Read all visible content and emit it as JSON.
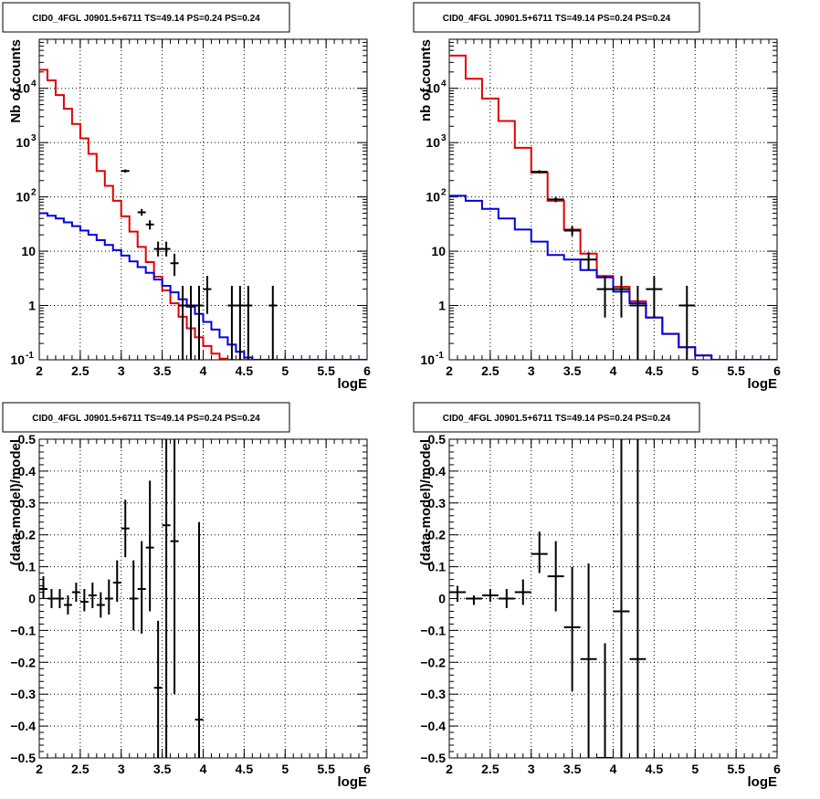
{
  "chart_data": [
    {
      "id": "counts_left",
      "type": "line",
      "title": "CID0_4FGL J0901.5+6711 TS=49.14 PS=0.24 PS=0.24",
      "xlabel": "logE",
      "ylabel": "Nb of counts",
      "xlim": [
        2,
        6
      ],
      "ylim": [
        0.1,
        80000
      ],
      "yscale": "log",
      "grid": true,
      "x_ticks": [
        "2",
        "2.5",
        "3",
        "3.5",
        "4",
        "4.5",
        "5",
        "5.5",
        "6"
      ],
      "y_ticks": [
        {
          "value": 0.1,
          "label": "10",
          "sup": "-1"
        },
        {
          "value": 1,
          "label": "1"
        },
        {
          "value": 10,
          "label": "10"
        },
        {
          "value": 100,
          "label": "10",
          "sup": "2"
        },
        {
          "value": 1000,
          "label": "10",
          "sup": "3"
        },
        {
          "value": 10000,
          "label": "10",
          "sup": "4"
        }
      ],
      "bin_edges": [
        2.0,
        2.1,
        2.2,
        2.3,
        2.4,
        2.5,
        2.6,
        2.7,
        2.8,
        2.9,
        3.0,
        3.1,
        3.2,
        3.3,
        3.4,
        3.5,
        3.6,
        3.7,
        3.8,
        3.9,
        4.0,
        4.1,
        4.2,
        4.3,
        4.4,
        4.5,
        4.6,
        4.7,
        4.8,
        4.9,
        5.0,
        5.1,
        5.2,
        5.3,
        5.4,
        5.5,
        5.6,
        5.7,
        5.8,
        5.9,
        6.0
      ],
      "series": [
        {
          "color": "#e00000",
          "style": "hist",
          "values": [
            22000,
            14000,
            7500,
            4200,
            2200,
            1200,
            620,
            300,
            160,
            85,
            44,
            23,
            12,
            6.3,
            3.4,
            1.9,
            1.1,
            0.62,
            0.38,
            0.26,
            0.18,
            0.13,
            0.105,
            0.1,
            0.1,
            0.1,
            0.1,
            0.1,
            0.1,
            0.1,
            0.1,
            0.1,
            0.1,
            0.1,
            0.1,
            0.1,
            0.1,
            0.1,
            0.1,
            0.1
          ]
        },
        {
          "color": "#0000dd",
          "style": "hist",
          "values": [
            50,
            45,
            40,
            34,
            29,
            24,
            20,
            16,
            13,
            10.5,
            8.3,
            6.5,
            5.1,
            4.0,
            3.0,
            2.3,
            1.75,
            1.3,
            0.95,
            0.7,
            0.5,
            0.36,
            0.26,
            0.19,
            0.14,
            0.11,
            0.1,
            0.1,
            0.1,
            0.1,
            0.1,
            0.1,
            0.1,
            0.1,
            0.1,
            0.1,
            0.1,
            0.1,
            0.1,
            0.1
          ]
        },
        {
          "color": "#000000",
          "style": "points",
          "points": [
            {
              "x": 3.05,
              "y": 300,
              "ylo": 280,
              "yhi": 320,
              "xerr": 0.05
            },
            {
              "x": 3.25,
              "y": 52,
              "ylo": 45,
              "yhi": 60,
              "xerr": 0.05
            },
            {
              "x": 3.35,
              "y": 31,
              "ylo": 25,
              "yhi": 37,
              "xerr": 0.05
            },
            {
              "x": 3.45,
              "y": 11,
              "ylo": 8,
              "yhi": 15,
              "xerr": 0.05
            },
            {
              "x": 3.55,
              "y": 11,
              "ylo": 8,
              "yhi": 15,
              "xerr": 0.05
            },
            {
              "x": 3.65,
              "y": 6,
              "ylo": 3.5,
              "yhi": 9,
              "xerr": 0.05
            },
            {
              "x": 3.75,
              "y": 1,
              "ylo": 0.1,
              "yhi": 2.3,
              "xerr": 0.05
            },
            {
              "x": 3.85,
              "y": 1,
              "ylo": 0.1,
              "yhi": 2.3,
              "xerr": 0.05
            },
            {
              "x": 3.95,
              "y": 1,
              "ylo": 0.1,
              "yhi": 2.3,
              "xerr": 0.05
            },
            {
              "x": 4.05,
              "y": 2,
              "ylo": 0.7,
              "yhi": 3.5,
              "xerr": 0.05
            },
            {
              "x": 4.35,
              "y": 1,
              "ylo": 0.1,
              "yhi": 2.3,
              "xerr": 0.05
            },
            {
              "x": 4.45,
              "y": 1,
              "ylo": 0.1,
              "yhi": 2.3,
              "xerr": 0.05
            },
            {
              "x": 4.55,
              "y": 1,
              "ylo": 0.1,
              "yhi": 2.3,
              "xerr": 0.05
            },
            {
              "x": 4.85,
              "y": 1,
              "ylo": 0.1,
              "yhi": 2.3,
              "xerr": 0.05
            }
          ]
        }
      ]
    },
    {
      "id": "counts_right",
      "type": "line",
      "title": "CID0_4FGL J0901.5+6711 TS=49.14 PS=0.24 PS=0.24",
      "xlabel": "logE",
      "ylabel": "nb of counts",
      "xlim": [
        2,
        6
      ],
      "ylim": [
        0.1,
        80000
      ],
      "yscale": "log",
      "grid": true,
      "x_ticks": [
        "2",
        "2.5",
        "3",
        "3.5",
        "4",
        "4.5",
        "5",
        "5.5",
        "6"
      ],
      "y_ticks": [
        {
          "value": 0.1,
          "label": "10",
          "sup": "-1"
        },
        {
          "value": 1,
          "label": "1"
        },
        {
          "value": 10,
          "label": "10"
        },
        {
          "value": 100,
          "label": "10",
          "sup": "2"
        },
        {
          "value": 1000,
          "label": "10",
          "sup": "3"
        },
        {
          "value": 10000,
          "label": "10",
          "sup": "4"
        }
      ],
      "bin_edges": [
        2.0,
        2.2,
        2.4,
        2.6,
        2.8,
        3.0,
        3.2,
        3.4,
        3.6,
        3.8,
        4.0,
        4.2,
        4.4,
        4.6,
        4.8,
        5.0,
        5.2,
        5.4,
        5.6,
        5.8,
        6.0
      ],
      "series": [
        {
          "color": "#e00000",
          "style": "hist",
          "values": [
            40000,
            15000,
            6500,
            2500,
            800,
            280,
            85,
            25,
            9,
            3.5,
            2.2,
            1.2,
            0.6,
            0.3,
            0.17,
            0.12,
            0.1,
            0.1,
            0.1,
            0.1
          ]
        },
        {
          "color": "#0000dd",
          "style": "hist",
          "values": [
            105,
            85,
            60,
            40,
            25,
            15,
            8.5,
            7,
            4.5,
            3.3,
            1.8,
            1.1,
            0.6,
            0.3,
            0.17,
            0.12,
            0.1,
            0.1,
            0.1,
            0.1
          ]
        },
        {
          "color": "#000000",
          "style": "points",
          "points": [
            {
              "x": 3.1,
              "y": 290,
              "ylo": 270,
              "yhi": 310,
              "xerr": 0.1
            },
            {
              "x": 3.3,
              "y": 90,
              "ylo": 80,
              "yhi": 100,
              "xerr": 0.1
            },
            {
              "x": 3.5,
              "y": 24,
              "ylo": 19,
              "yhi": 29,
              "xerr": 0.1
            },
            {
              "x": 3.7,
              "y": 7,
              "ylo": 4.5,
              "yhi": 9.5,
              "xerr": 0.1
            },
            {
              "x": 3.9,
              "y": 2,
              "ylo": 0.6,
              "yhi": 3.5,
              "xerr": 0.1
            },
            {
              "x": 4.1,
              "y": 2,
              "ylo": 0.6,
              "yhi": 3.5,
              "xerr": 0.1
            },
            {
              "x": 4.3,
              "y": 1,
              "ylo": 0.1,
              "yhi": 2.3,
              "xerr": 0.1
            },
            {
              "x": 4.5,
              "y": 2,
              "ylo": 0.6,
              "yhi": 3.5,
              "xerr": 0.1
            },
            {
              "x": 4.9,
              "y": 1,
              "ylo": 0.1,
              "yhi": 2.3,
              "xerr": 0.1
            }
          ]
        }
      ]
    },
    {
      "id": "resid_left",
      "type": "scatter",
      "title": "CID0_4FGL J0901.5+6711 TS=49.14 PS=0.24 PS=0.24",
      "xlabel": "logE",
      "ylabel": "(data-model)/model",
      "xlim": [
        2,
        6
      ],
      "ylim": [
        -0.5,
        0.5
      ],
      "yscale": "linear",
      "grid": true,
      "x_ticks": [
        "2",
        "2.5",
        "3",
        "3.5",
        "4",
        "4.5",
        "5",
        "5.5",
        "6"
      ],
      "y_ticks": [
        {
          "value": -0.5,
          "label": "−0.5"
        },
        {
          "value": -0.4,
          "label": "−0.4"
        },
        {
          "value": -0.3,
          "label": "−0.3"
        },
        {
          "value": -0.2,
          "label": "−0.2"
        },
        {
          "value": -0.1,
          "label": "−0.1"
        },
        {
          "value": 0,
          "label": "0"
        },
        {
          "value": 0.1,
          "label": "0.1"
        },
        {
          "value": 0.2,
          "label": "0.2"
        },
        {
          "value": 0.3,
          "label": "0.3"
        },
        {
          "value": 0.4,
          "label": "0.4"
        },
        {
          "value": 0.5,
          "label": "0.5"
        }
      ],
      "series": [
        {
          "color": "#000000",
          "style": "points",
          "points": [
            {
              "x": 2.05,
              "y": 0.03,
              "ylo": 0.0,
              "yhi": 0.07,
              "xerr": 0.05
            },
            {
              "x": 2.15,
              "y": 0.0,
              "ylo": -0.03,
              "yhi": 0.03,
              "xerr": 0.05
            },
            {
              "x": 2.25,
              "y": 0.0,
              "ylo": -0.03,
              "yhi": 0.03,
              "xerr": 0.05
            },
            {
              "x": 2.35,
              "y": -0.02,
              "ylo": -0.05,
              "yhi": 0.01,
              "xerr": 0.05
            },
            {
              "x": 2.45,
              "y": 0.02,
              "ylo": -0.01,
              "yhi": 0.05,
              "xerr": 0.05
            },
            {
              "x": 2.55,
              "y": -0.01,
              "ylo": -0.04,
              "yhi": 0.03,
              "xerr": 0.05
            },
            {
              "x": 2.65,
              "y": 0.01,
              "ylo": -0.03,
              "yhi": 0.05,
              "xerr": 0.05
            },
            {
              "x": 2.75,
              "y": -0.02,
              "ylo": -0.06,
              "yhi": 0.02,
              "xerr": 0.05
            },
            {
              "x": 2.85,
              "y": 0.0,
              "ylo": -0.05,
              "yhi": 0.06,
              "xerr": 0.05
            },
            {
              "x": 2.95,
              "y": 0.05,
              "ylo": -0.01,
              "yhi": 0.12,
              "xerr": 0.05
            },
            {
              "x": 3.05,
              "y": 0.22,
              "ylo": 0.13,
              "yhi": 0.31,
              "xerr": 0.05
            },
            {
              "x": 3.15,
              "y": 0.0,
              "ylo": -0.1,
              "yhi": 0.12,
              "xerr": 0.05
            },
            {
              "x": 3.25,
              "y": 0.03,
              "ylo": -0.11,
              "yhi": 0.18,
              "xerr": 0.05
            },
            {
              "x": 3.35,
              "y": 0.16,
              "ylo": -0.04,
              "yhi": 0.37,
              "xerr": 0.05
            },
            {
              "x": 3.45,
              "y": -0.28,
              "ylo": -0.5,
              "yhi": -0.07,
              "xerr": 0.05
            },
            {
              "x": 3.55,
              "y": 0.23,
              "ylo": -0.5,
              "yhi": 0.5,
              "xerr": 0.05
            },
            {
              "x": 3.65,
              "y": 0.18,
              "ylo": -0.3,
              "yhi": 0.5,
              "xerr": 0.05
            },
            {
              "x": 3.95,
              "y": -0.38,
              "ylo": -0.5,
              "yhi": 0.24,
              "xerr": 0.05
            }
          ]
        }
      ]
    },
    {
      "id": "resid_right",
      "type": "scatter",
      "title": "CID0_4FGL J0901.5+6711 TS=49.14 PS=0.24 PS=0.24",
      "xlabel": "logE",
      "ylabel": "(data-model)/model",
      "xlim": [
        2,
        6
      ],
      "ylim": [
        -0.5,
        0.5
      ],
      "yscale": "linear",
      "grid": true,
      "x_ticks": [
        "2",
        "2.5",
        "3",
        "3.5",
        "4",
        "4.5",
        "5",
        "5.5",
        "6"
      ],
      "y_ticks": [
        {
          "value": -0.5,
          "label": "−0.5"
        },
        {
          "value": -0.4,
          "label": "−0.4"
        },
        {
          "value": -0.3,
          "label": "−0.3"
        },
        {
          "value": -0.2,
          "label": "−0.2"
        },
        {
          "value": -0.1,
          "label": "−0.1"
        },
        {
          "value": 0,
          "label": "0"
        },
        {
          "value": 0.1,
          "label": "0.1"
        },
        {
          "value": 0.2,
          "label": "0.2"
        },
        {
          "value": 0.3,
          "label": "0.3"
        },
        {
          "value": 0.4,
          "label": "0.4"
        },
        {
          "value": 0.5,
          "label": "0.5"
        }
      ],
      "series": [
        {
          "color": "#000000",
          "style": "points",
          "points": [
            {
              "x": 2.1,
              "y": 0.02,
              "ylo": -0.01,
              "yhi": 0.04,
              "xerr": 0.1
            },
            {
              "x": 2.3,
              "y": 0.0,
              "ylo": -0.02,
              "yhi": 0.01,
              "xerr": 0.1
            },
            {
              "x": 2.5,
              "y": 0.01,
              "ylo": -0.01,
              "yhi": 0.03,
              "xerr": 0.1
            },
            {
              "x": 2.7,
              "y": 0.0,
              "ylo": -0.03,
              "yhi": 0.03,
              "xerr": 0.1
            },
            {
              "x": 2.9,
              "y": 0.02,
              "ylo": -0.02,
              "yhi": 0.06,
              "xerr": 0.1
            },
            {
              "x": 3.1,
              "y": 0.14,
              "ylo": 0.08,
              "yhi": 0.21,
              "xerr": 0.1
            },
            {
              "x": 3.3,
              "y": 0.07,
              "ylo": -0.04,
              "yhi": 0.18,
              "xerr": 0.1
            },
            {
              "x": 3.5,
              "y": -0.09,
              "ylo": -0.29,
              "yhi": 0.1,
              "xerr": 0.1
            },
            {
              "x": 3.7,
              "y": -0.19,
              "ylo": -0.5,
              "yhi": 0.11,
              "xerr": 0.1
            },
            {
              "x": 3.9,
              "y": -0.5,
              "ylo": -0.5,
              "yhi": -0.14,
              "xerr": 0.1
            },
            {
              "x": 4.1,
              "y": -0.04,
              "ylo": -0.5,
              "yhi": 0.5,
              "xerr": 0.1
            },
            {
              "x": 4.3,
              "y": -0.19,
              "ylo": -0.5,
              "yhi": 0.5,
              "xerr": 0.1
            }
          ]
        }
      ]
    }
  ]
}
